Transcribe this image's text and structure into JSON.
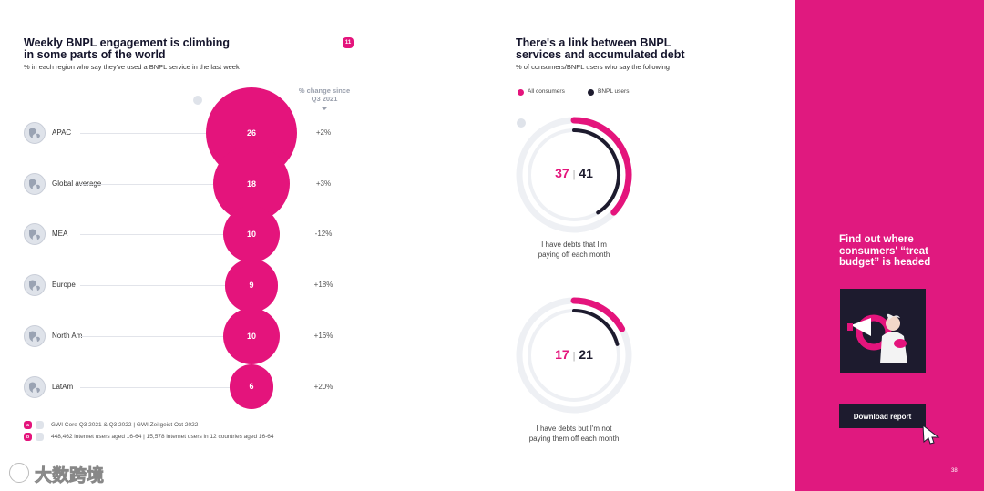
{
  "left": {
    "title_line1": "Weekly BNPL engagement is climbing",
    "title_line2": "in some parts of the world",
    "subtitle": "% in each region who say they've used a BNPL service in the last week",
    "page_badge": "11",
    "change_header_line1": "% change since",
    "change_header_line2": "Q3 2021",
    "footnote_source": "GWI Core Q3 2021 & Q3 2022 | GWI Zeitgeist Oct 2022",
    "footnote_sample": "448,462 internet users aged 16-64 | 15,578 internet users in 12 countries aged 16-64"
  },
  "chart_data": [
    {
      "type": "bubble",
      "title": "Weekly BNPL engagement is climbing in some parts of the world",
      "subtitle": "% in each region who say they've used a BNPL service in the last week",
      "categories": [
        "APAC",
        "Global average",
        "MEA",
        "Europe",
        "North Am",
        "LatAm"
      ],
      "values": [
        26,
        18,
        10,
        9,
        10,
        6
      ],
      "change_since_q3_2021": [
        "+2%",
        "+3%",
        "-12%",
        "+18%",
        "+16%",
        "+20%"
      ]
    },
    {
      "type": "donut",
      "title": "There's a link between BNPL services and accumulated debt",
      "subtitle": "% of consumers/BNPL users who say the following",
      "legend": [
        "All consumers",
        "BNPL users"
      ],
      "series": [
        {
          "name": "All consumers",
          "values": [
            37,
            17
          ]
        },
        {
          "name": "BNPL users",
          "values": [
            41,
            21
          ]
        }
      ],
      "categories": [
        "I have debts that I'm paying off each month",
        "I have debts but I'm not paying them off each month"
      ]
    }
  ],
  "right": {
    "title_line1": "There's a link between BNPL",
    "title_line2": "services and accumulated debt",
    "subtitle": "% of consumers/BNPL users who say the following",
    "sep": "|",
    "donut1_label_line1": "I have debts that I'm",
    "donut1_label_line2": "paying off each month",
    "donut2_label_line1": "I have debts but I'm not",
    "donut2_label_line2": "paying them off each month"
  },
  "cta": {
    "line1": "Find out where",
    "line2": "consumers' “treat",
    "line3": "budget” is headed",
    "button_label": "Download report",
    "page_number": "38"
  },
  "watermark": "大数跨境",
  "colors": {
    "accent": "#e4147c",
    "dark": "#1d1b2e",
    "track": "#eef0f4"
  }
}
